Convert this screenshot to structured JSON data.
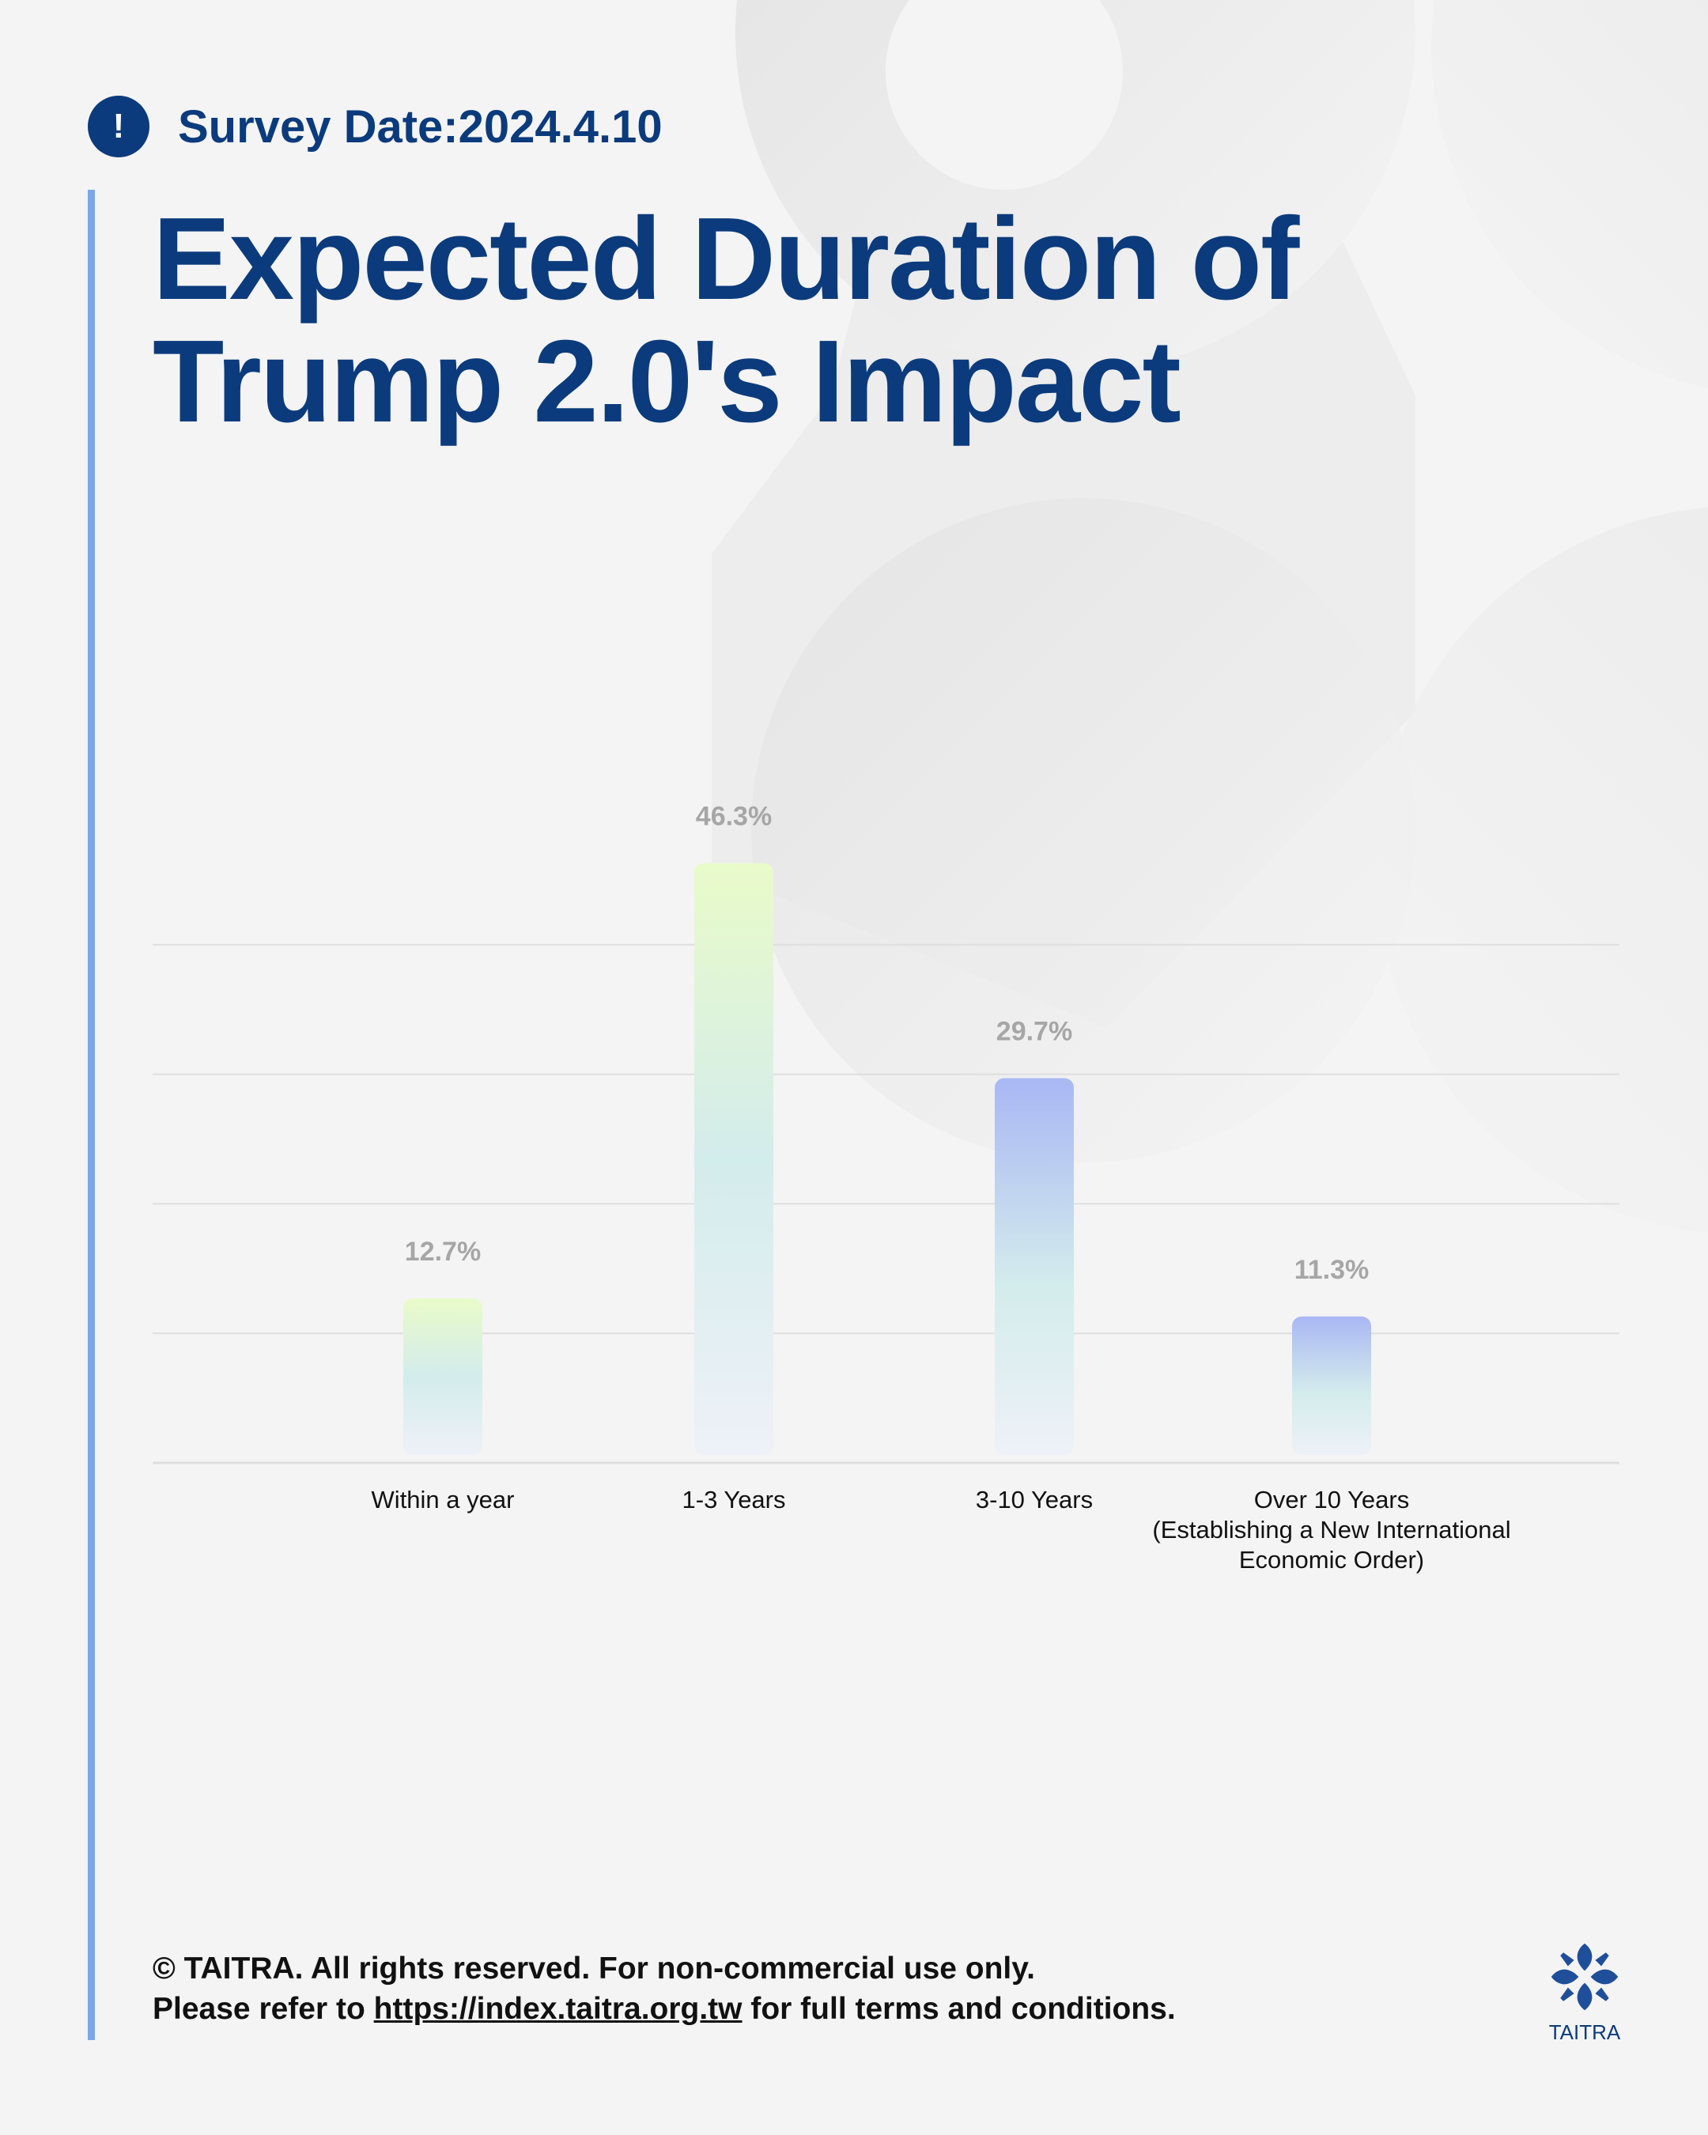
{
  "header": {
    "alert_glyph": "!",
    "survey_date": "Survey Date:2024.4.10",
    "title": "Expected Duration of Trump 2.0's Impact"
  },
  "chart_data": {
    "type": "bar",
    "categories": [
      [
        "Within a year"
      ],
      [
        "1-3 Years"
      ],
      [
        "3-10 Years"
      ],
      [
        "Over 10 Years",
        "(Establishing a New International",
        "Economic Order)"
      ]
    ],
    "values": [
      12.7,
      46.3,
      29.7,
      11.3
    ],
    "value_labels": [
      "12.7%",
      "46.3%",
      "29.7%",
      "11.3%"
    ],
    "title": "",
    "xlabel": "",
    "ylabel": "",
    "ylim": [
      0,
      50
    ],
    "grid": true,
    "legend": "none",
    "colors": {
      "warm_top": "#e9fbc9",
      "cool_top": "#a9b7f4",
      "mid": "#d3ecec",
      "bottom": "#eef1f8",
      "value_label": "#a6a6a6",
      "grid": "#dedede"
    }
  },
  "footer": {
    "copyright": "© TAITRA. All rights reserved. For non-commercial use only.",
    "refer_prefix": "Please refer to ",
    "link": "https://index.taitra.org.tw",
    "refer_suffix": " for full terms and conditions."
  },
  "logo": {
    "text": "TAITRA",
    "color": "#1f4f9a"
  }
}
